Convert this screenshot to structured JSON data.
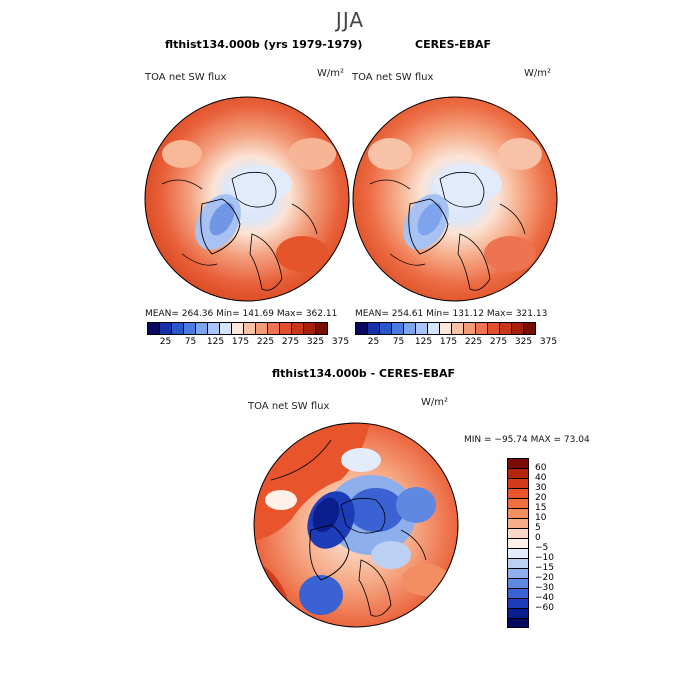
{
  "title": "JJA",
  "panels": {
    "left": {
      "title": "flthist134.000b (yrs 1979-1979)",
      "var_label": "TOA net SW flux",
      "units": "W/m²",
      "stats": "MEAN= 264.36   Min= 141.69   Max= 362.11"
    },
    "right": {
      "title": "CERES-EBAF",
      "var_label": "TOA net SW flux",
      "units": "W/m²",
      "stats": "MEAN= 254.61   Min= 131.12   Max= 321.13"
    },
    "diff": {
      "title": "flthist134.000b - CERES-EBAF",
      "var_label": "TOA net SW flux",
      "units": "W/m²",
      "stats": "MIN = −95.74  MAX =  73.04"
    }
  },
  "colorbar_top": {
    "ticks": [
      "25",
      "75",
      "125",
      "175",
      "225",
      "275",
      "325",
      "375"
    ],
    "colors": [
      "#08085e",
      "#1530a8",
      "#2956cc",
      "#4b7be0",
      "#7ea4ee",
      "#a9c5f4",
      "#d6e4fa",
      "#fbe7dc",
      "#f8c2a8",
      "#f49b78",
      "#ee7350",
      "#e2502e",
      "#c8361b",
      "#a5200f",
      "#7a0d05"
    ]
  },
  "colorbar_diff": {
    "labels": [
      "60",
      "40",
      "30",
      "20",
      "15",
      "10",
      "5",
      "0",
      "−5",
      "−10",
      "−15",
      "−20",
      "−30",
      "−40",
      "−60"
    ],
    "colors": [
      "#7a0d05",
      "#b5240f",
      "#d23a1a",
      "#e8552c",
      "#ef6f43",
      "#f38e63",
      "#f6ad8a",
      "#fbd9c4",
      "#fdf1ea",
      "#e3ecfb",
      "#bcd0f4",
      "#8eaeec",
      "#5f88e0",
      "#3a62d2",
      "#1c3cb8",
      "#0b1e8e",
      "#050a5e"
    ]
  }
}
